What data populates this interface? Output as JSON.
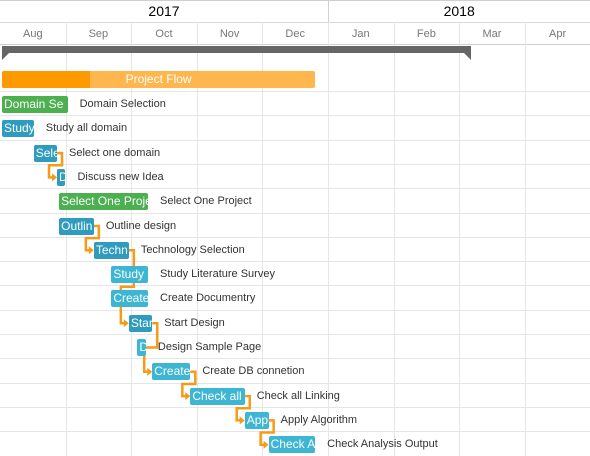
{
  "timeline": {
    "years": [
      "2017",
      "2018"
    ],
    "months": [
      "Aug",
      "Sep",
      "Oct",
      "Nov",
      "Dec",
      "Jan",
      "Feb",
      "Mar",
      "Apr"
    ]
  },
  "colors": {
    "project_done": "#ff9900",
    "project_rest": "#ffb74d",
    "green": "#4caf50",
    "teal": "#2e9bbf",
    "cyan": "#3cb6d3",
    "dependency": "#f59b19",
    "summary": "#666666"
  },
  "summary_bar": {
    "start": "2017-08-01",
    "end": "2018-03-01"
  },
  "project": {
    "label": "Project Flow",
    "start": "2017-08-01",
    "end": "2017-12-25",
    "progress": 0.28
  },
  "tasks": [
    {
      "id": "t1",
      "bar_text": "Domain Se",
      "label": "Domain Selection",
      "start": "2017-08-01",
      "end": "2017-09-01",
      "color": "green"
    },
    {
      "id": "t2",
      "bar_text": "Study",
      "label": "Study all domain",
      "start": "2017-08-01",
      "end": "2017-08-16",
      "color": "teal"
    },
    {
      "id": "t3",
      "bar_text": "Sele",
      "label": "Select one domain",
      "start": "2017-08-16",
      "end": "2017-08-27",
      "color": "teal"
    },
    {
      "id": "t4",
      "bar_text": "D",
      "label": "Discuss new  Idea",
      "start": "2017-08-27",
      "end": "2017-08-31",
      "color": "teal"
    },
    {
      "id": "t5",
      "bar_text": "Select One Project",
      "label": "Select One Project",
      "start": "2017-08-28",
      "end": "2017-10-08",
      "color": "green"
    },
    {
      "id": "t6",
      "bar_text": "Outlin",
      "label": "Outline design",
      "start": "2017-08-28",
      "end": "2017-09-13",
      "color": "teal"
    },
    {
      "id": "t7",
      "bar_text": "Techn",
      "label": "Technology Selection",
      "start": "2017-09-13",
      "end": "2017-09-29",
      "color": "teal"
    },
    {
      "id": "t8",
      "bar_text": "Study Litera",
      "label": "Study Literature Survey",
      "start": "2017-09-21",
      "end": "2017-10-08",
      "color": "cyan"
    },
    {
      "id": "t9",
      "bar_text": "Create Docu",
      "label": "Create Documentry",
      "start": "2017-09-21",
      "end": "2017-10-08",
      "color": "cyan"
    },
    {
      "id": "t10",
      "bar_text": "Star",
      "label": "Start Design",
      "start": "2017-09-29",
      "end": "2017-10-10",
      "color": "teal"
    },
    {
      "id": "t11",
      "bar_text": "D",
      "label": "Design Sample Page",
      "start": "2017-10-03",
      "end": "2017-10-07",
      "color": "cyan"
    },
    {
      "id": "t12",
      "bar_text": "Create",
      "label": "Create DB connetion",
      "start": "2017-10-10",
      "end": "2017-10-28",
      "color": "cyan"
    },
    {
      "id": "t13",
      "bar_text": "Check all",
      "label": "Check all Linking",
      "start": "2017-10-28",
      "end": "2017-11-22",
      "color": "cyan"
    },
    {
      "id": "t14",
      "bar_text": "Appl",
      "label": "Apply Algorithm",
      "start": "2017-11-22",
      "end": "2017-12-03",
      "color": "cyan"
    },
    {
      "id": "t15",
      "bar_text": "Check Analy",
      "label": "Check Analysis Output",
      "start": "2017-12-03",
      "end": "2017-12-25",
      "color": "cyan"
    }
  ],
  "dependencies": [
    [
      "t3",
      "t4"
    ],
    [
      "t6",
      "t7"
    ],
    [
      "t7",
      "t10"
    ],
    [
      "t10",
      "t12"
    ],
    [
      "t12",
      "t13"
    ],
    [
      "t13",
      "t14"
    ],
    [
      "t14",
      "t15"
    ]
  ]
}
